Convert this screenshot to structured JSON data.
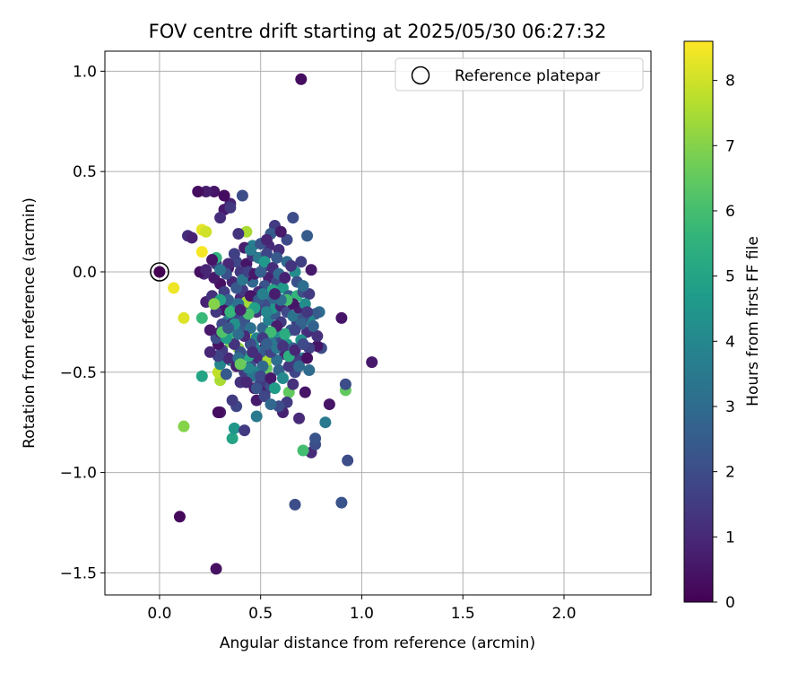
{
  "chart_data": {
    "type": "scatter",
    "title": "FOV centre drift starting at 2025/05/30 06:27:32",
    "xlabel": "Angular distance from reference (arcmin)",
    "ylabel": "Rotation from reference (arcmin)",
    "xlim": [
      -0.27,
      2.43
    ],
    "ylim": [
      -1.61,
      1.1
    ],
    "xticks": [
      0.0,
      0.5,
      1.0,
      1.5,
      2.0
    ],
    "xtick_labels": [
      "0.0",
      "0.5",
      "1.0",
      "1.5",
      "2.0"
    ],
    "yticks": [
      -1.5,
      -1.0,
      -0.5,
      0.0,
      0.5,
      1.0
    ],
    "ytick_labels": [
      "−1.5",
      "−1.0",
      "−0.5",
      "0.0",
      "0.5",
      "1.0"
    ],
    "grid": true,
    "legend": {
      "position": "top-right",
      "entries": [
        "Reference platepar"
      ]
    },
    "reference_point": {
      "x": 0.0,
      "y": 0.0,
      "label": "Reference platepar"
    },
    "colorbar": {
      "label": "Hours from first FF file",
      "colormap": "viridis",
      "range": [
        0,
        8.6
      ],
      "ticks": [
        0,
        1,
        2,
        3,
        4,
        5,
        6,
        7,
        8
      ],
      "tick_labels": [
        "0",
        "1",
        "2",
        "3",
        "4",
        "5",
        "6",
        "7",
        "8"
      ]
    },
    "points_format": [
      "x_arcmin",
      "y_arcmin",
      "hours"
    ],
    "points": [
      [
        0.7,
        0.96,
        0.3
      ],
      [
        1.05,
        -0.45,
        0.6
      ],
      [
        0.1,
        -1.22,
        0.2
      ],
      [
        0.28,
        -1.48,
        0.4
      ],
      [
        0.67,
        -1.16,
        2.0
      ],
      [
        0.9,
        -1.15,
        2.2
      ],
      [
        0.93,
        -0.94,
        2.0
      ],
      [
        0.75,
        -0.9,
        1.0
      ],
      [
        0.71,
        -0.89,
        6.0
      ],
      [
        0.12,
        -0.77,
        7.0
      ],
      [
        0.36,
        -0.83,
        5.0
      ],
      [
        0.37,
        -0.78,
        4.5
      ],
      [
        0.3,
        -0.7,
        0.6
      ],
      [
        0.29,
        -0.7,
        0.3
      ],
      [
        0.42,
        -0.79,
        1.5
      ],
      [
        0.48,
        -0.72,
        3.5
      ],
      [
        0.38,
        -0.67,
        1.8
      ],
      [
        0.36,
        -0.64,
        1.5
      ],
      [
        0.77,
        -0.86,
        2.0
      ],
      [
        0.77,
        -0.83,
        2.2
      ],
      [
        0.82,
        -0.75,
        3.5
      ],
      [
        0.69,
        -0.73,
        1.0
      ],
      [
        0.84,
        -0.66,
        0.5
      ],
      [
        0.61,
        -0.7,
        0.8
      ],
      [
        0.92,
        -0.59,
        6.5
      ],
      [
        0.92,
        -0.56,
        2.0
      ],
      [
        0.64,
        -0.6,
        6.5
      ],
      [
        0.72,
        -0.6,
        0.5
      ],
      [
        0.63,
        -0.65,
        1.5
      ],
      [
        0.59,
        -0.67,
        2.0
      ],
      [
        0.3,
        -0.54,
        7.5
      ],
      [
        0.29,
        -0.5,
        7.8
      ],
      [
        0.21,
        -0.52,
        5.0
      ],
      [
        0.3,
        -0.46,
        4.0
      ],
      [
        0.35,
        -0.44,
        3.0
      ],
      [
        0.37,
        -0.45,
        5.5
      ],
      [
        0.5,
        -0.55,
        1.5
      ],
      [
        0.53,
        -0.48,
        6.5
      ],
      [
        0.53,
        -0.44,
        7.5
      ],
      [
        0.47,
        -0.58,
        0.5
      ],
      [
        0.52,
        -0.6,
        0.8
      ],
      [
        0.55,
        -0.57,
        2.0
      ],
      [
        0.66,
        -0.56,
        1.2
      ],
      [
        0.67,
        -0.5,
        1.8
      ],
      [
        0.74,
        -0.49,
        3.0
      ],
      [
        0.71,
        -0.43,
        3.5
      ],
      [
        0.68,
        -0.44,
        1.5
      ],
      [
        0.8,
        -0.38,
        2.0
      ],
      [
        0.78,
        -0.37,
        0.5
      ],
      [
        0.78,
        -0.32,
        1.2
      ],
      [
        0.9,
        -0.23,
        0.5
      ],
      [
        0.79,
        -0.2,
        3.0
      ],
      [
        0.77,
        -0.21,
        2.5
      ],
      [
        0.74,
        -0.24,
        4.0
      ],
      [
        0.68,
        -0.25,
        1.5
      ],
      [
        0.65,
        -0.29,
        2.5
      ],
      [
        0.63,
        -0.36,
        4.5
      ],
      [
        0.59,
        -0.34,
        1.8
      ],
      [
        0.58,
        -0.3,
        4.2
      ],
      [
        0.55,
        -0.35,
        3.5
      ],
      [
        0.52,
        -0.38,
        0.5
      ],
      [
        0.5,
        -0.4,
        2.5
      ],
      [
        0.48,
        -0.43,
        1.0
      ],
      [
        0.45,
        -0.47,
        2.0
      ],
      [
        0.42,
        -0.5,
        1.5
      ],
      [
        0.38,
        -0.47,
        0.8
      ],
      [
        0.34,
        -0.43,
        1.0
      ],
      [
        0.31,
        -0.39,
        1.5
      ],
      [
        0.29,
        -0.36,
        0.5
      ],
      [
        0.28,
        -0.33,
        2.0
      ],
      [
        0.3,
        -0.3,
        0.8
      ],
      [
        0.35,
        -0.35,
        6.8
      ],
      [
        0.39,
        -0.38,
        7.2
      ],
      [
        0.36,
        -0.3,
        5.5
      ],
      [
        0.43,
        -0.32,
        7.6
      ],
      [
        0.4,
        -0.27,
        2.5
      ],
      [
        0.34,
        -0.24,
        3.5
      ],
      [
        0.38,
        -0.21,
        1.8
      ],
      [
        0.42,
        -0.24,
        2.2
      ],
      [
        0.45,
        -0.28,
        3.2
      ],
      [
        0.48,
        -0.33,
        4.0
      ],
      [
        0.51,
        -0.28,
        2.8
      ],
      [
        0.54,
        -0.24,
        3.8
      ],
      [
        0.57,
        -0.21,
        2.5
      ],
      [
        0.6,
        -0.25,
        1.5
      ],
      [
        0.56,
        -0.18,
        4.5
      ],
      [
        0.52,
        -0.16,
        2.0
      ],
      [
        0.48,
        -0.2,
        1.2
      ],
      [
        0.44,
        -0.16,
        1.6
      ],
      [
        0.4,
        -0.13,
        1.0
      ],
      [
        0.36,
        -0.16,
        4.8
      ],
      [
        0.32,
        -0.19,
        0.5
      ],
      [
        0.28,
        -0.2,
        1.4
      ],
      [
        0.25,
        -0.29,
        0.6
      ],
      [
        0.21,
        -0.23,
        5.8
      ],
      [
        0.23,
        -0.15,
        0.8
      ],
      [
        0.26,
        -0.12,
        1.2
      ],
      [
        0.3,
        -0.06,
        0.4
      ],
      [
        0.27,
        -0.03,
        0.6
      ],
      [
        0.22,
        -0.01,
        1.0
      ],
      [
        0.2,
        0.0,
        0.4
      ],
      [
        0.23,
        0.01,
        0.9
      ],
      [
        0.28,
        0.04,
        1.5
      ],
      [
        0.34,
        0.02,
        0.6
      ],
      [
        0.38,
        0.05,
        1.8
      ],
      [
        0.43,
        0.04,
        0.5
      ],
      [
        0.46,
        0.08,
        1.2
      ],
      [
        0.49,
        0.07,
        3.5
      ],
      [
        0.52,
        0.03,
        1.6
      ],
      [
        0.54,
        -0.03,
        0.8
      ],
      [
        0.52,
        -0.07,
        2.2
      ],
      [
        0.49,
        -0.1,
        1.0
      ],
      [
        0.46,
        -0.05,
        2.8
      ],
      [
        0.43,
        -0.02,
        0.4
      ],
      [
        0.4,
        0.0,
        1.4
      ],
      [
        0.36,
        -0.05,
        0.9
      ],
      [
        0.32,
        -0.1,
        1.6
      ],
      [
        0.34,
        -0.14,
        2.6
      ],
      [
        0.43,
        -0.15,
        7.4
      ],
      [
        0.58,
        -0.05,
        1.8
      ],
      [
        0.61,
        -0.08,
        4.6
      ],
      [
        0.64,
        -0.12,
        2.5
      ],
      [
        0.68,
        -0.12,
        5.6
      ],
      [
        0.71,
        -0.1,
        2.0
      ],
      [
        0.74,
        -0.11,
        1.5
      ],
      [
        0.63,
        0.05,
        3.0
      ],
      [
        0.67,
        0.0,
        4.2
      ],
      [
        0.7,
        0.05,
        1.6
      ],
      [
        0.75,
        0.01,
        0.6
      ],
      [
        0.73,
        0.18,
        2.5
      ],
      [
        0.66,
        0.27,
        2.0
      ],
      [
        0.57,
        0.23,
        1.5
      ],
      [
        0.55,
        0.19,
        2.5
      ],
      [
        0.54,
        0.13,
        1.0
      ],
      [
        0.53,
        0.09,
        1.8
      ],
      [
        0.46,
        0.13,
        3.8
      ],
      [
        0.43,
        0.2,
        7.5
      ],
      [
        0.39,
        0.19,
        1.3
      ],
      [
        0.41,
        0.38,
        2.0
      ],
      [
        0.35,
        0.34,
        0.8
      ],
      [
        0.32,
        0.31,
        0.6
      ],
      [
        0.3,
        0.27,
        1.1
      ],
      [
        0.27,
        0.4,
        0.5
      ],
      [
        0.23,
        0.4,
        0.7
      ],
      [
        0.19,
        0.4,
        0.3
      ],
      [
        0.21,
        0.21,
        8.3
      ],
      [
        0.23,
        0.2,
        8.0
      ],
      [
        0.14,
        0.18,
        1.1
      ],
      [
        0.16,
        0.17,
        0.8
      ],
      [
        0.21,
        0.1,
        8.5
      ],
      [
        0.28,
        0.07,
        5.5
      ],
      [
        0.34,
        0.04,
        1.0
      ],
      [
        0.07,
        -0.08,
        8.4
      ],
      [
        0.12,
        -0.23,
        8.2
      ],
      [
        0.3,
        -0.14,
        5.0
      ],
      [
        0.27,
        -0.16,
        7.0
      ],
      [
        0.31,
        -0.26,
        1.9
      ],
      [
        0.36,
        -0.26,
        0.7
      ],
      [
        0.39,
        -0.16,
        3.2
      ],
      [
        0.41,
        -0.09,
        1.5
      ],
      [
        0.45,
        -0.12,
        0.5
      ],
      [
        0.49,
        -0.14,
        2.4
      ],
      [
        0.53,
        -0.2,
        4.0
      ],
      [
        0.56,
        -0.13,
        2.8
      ],
      [
        0.6,
        -0.17,
        0.9
      ],
      [
        0.63,
        -0.2,
        1.9
      ],
      [
        0.66,
        -0.22,
        3.3
      ],
      [
        0.69,
        -0.18,
        0.7
      ],
      [
        0.71,
        -0.23,
        2.3
      ],
      [
        0.73,
        -0.3,
        1.1
      ],
      [
        0.7,
        -0.34,
        4.4
      ],
      [
        0.66,
        -0.38,
        2.6
      ],
      [
        0.62,
        -0.41,
        0.9
      ],
      [
        0.58,
        -0.44,
        3.1
      ],
      [
        0.55,
        -0.4,
        1.7
      ],
      [
        0.51,
        -0.47,
        2.9
      ],
      [
        0.47,
        -0.5,
        3.9
      ],
      [
        0.44,
        -0.42,
        5.2
      ],
      [
        0.4,
        -0.4,
        2.1
      ],
      [
        0.37,
        -0.36,
        1.3
      ],
      [
        0.33,
        -0.33,
        4.7
      ],
      [
        0.31,
        -0.3,
        6.2
      ],
      [
        0.29,
        -0.42,
        1.7
      ],
      [
        0.25,
        -0.4,
        0.9
      ],
      [
        0.33,
        -0.51,
        2.4
      ],
      [
        0.4,
        -0.55,
        1.2
      ],
      [
        0.46,
        -0.52,
        3.3
      ],
      [
        0.5,
        -0.52,
        1.9
      ],
      [
        0.55,
        -0.53,
        0.6
      ],
      [
        0.59,
        -0.49,
        2.7
      ],
      [
        0.61,
        -0.53,
        4.1
      ],
      [
        0.64,
        -0.47,
        1.4
      ],
      [
        0.69,
        -0.47,
        2.9
      ],
      [
        0.74,
        -0.38,
        1.7
      ],
      [
        0.76,
        -0.27,
        2.7
      ],
      [
        0.62,
        -0.31,
        5.3
      ],
      [
        0.58,
        -0.27,
        0.7
      ],
      [
        0.55,
        -0.3,
        5.9
      ],
      [
        0.51,
        -0.33,
        1.5
      ],
      [
        0.47,
        -0.38,
        3.6
      ],
      [
        0.45,
        -0.36,
        2.0
      ],
      [
        0.42,
        -0.32,
        1.0
      ],
      [
        0.39,
        -0.31,
        3.0
      ],
      [
        0.37,
        -0.26,
        4.3
      ],
      [
        0.34,
        -0.28,
        2.3
      ],
      [
        0.35,
        -0.2,
        5.7
      ],
      [
        0.38,
        -0.08,
        2.4
      ],
      [
        0.41,
        -0.04,
        3.4
      ],
      [
        0.44,
        0.0,
        1.7
      ],
      [
        0.47,
        -0.01,
        0.6
      ],
      [
        0.5,
        0.0,
        2.6
      ],
      [
        0.52,
        0.05,
        4.6
      ],
      [
        0.56,
        0.02,
        1.1
      ],
      [
        0.59,
        -0.01,
        2.9
      ],
      [
        0.62,
        -0.03,
        0.8
      ],
      [
        0.65,
        0.03,
        1.3
      ],
      [
        0.68,
        -0.05,
        2.1
      ],
      [
        0.71,
        -0.07,
        3.1
      ],
      [
        0.72,
        -0.16,
        4.2
      ],
      [
        0.56,
        -0.09,
        5.1
      ],
      [
        0.51,
        -0.11,
        3.7
      ],
      [
        0.47,
        -0.18,
        4.9
      ],
      [
        0.44,
        -0.21,
        6.1
      ],
      [
        0.4,
        -0.19,
        0.8
      ],
      [
        0.33,
        -0.01,
        2.1
      ],
      [
        0.3,
        0.01,
        3.3
      ],
      [
        0.26,
        0.06,
        0.5
      ],
      [
        0.37,
        0.09,
        1.6
      ],
      [
        0.42,
        0.12,
        0.7
      ],
      [
        0.45,
        0.11,
        3.6
      ],
      [
        0.5,
        0.14,
        2.2
      ],
      [
        0.59,
        0.11,
        1.1
      ],
      [
        0.63,
        0.16,
        1.9
      ],
      [
        0.6,
        0.2,
        0.6
      ],
      [
        0.58,
        0.07,
        2.4
      ],
      [
        0.53,
        0.16,
        0.9
      ],
      [
        0.32,
        0.38,
        0.3
      ],
      [
        0.35,
        0.32,
        1.4
      ],
      [
        0.66,
        -0.16,
        0.5
      ],
      [
        0.63,
        -0.14,
        6.0
      ],
      [
        0.48,
        -0.64,
        0.6
      ],
      [
        0.52,
        -0.62,
        1.8
      ],
      [
        0.55,
        -0.66,
        2.9
      ],
      [
        0.57,
        -0.58,
        4.7
      ],
      [
        0.48,
        -0.58,
        2.2
      ],
      [
        0.44,
        -0.48,
        4.0
      ],
      [
        0.43,
        -0.55,
        0.9
      ],
      [
        0.39,
        -0.43,
        3.1
      ],
      [
        0.4,
        -0.46,
        6.6
      ],
      [
        0.46,
        -0.4,
        1.1
      ],
      [
        0.53,
        -0.36,
        2.6
      ],
      [
        0.58,
        -0.38,
        3.4
      ],
      [
        0.61,
        -0.37,
        1.3
      ],
      [
        0.64,
        -0.42,
        5.4
      ],
      [
        0.67,
        -0.39,
        0.9
      ],
      [
        0.71,
        -0.36,
        1.9
      ],
      [
        0.73,
        -0.43,
        0.4
      ],
      [
        0.73,
        -0.2,
        1.4
      ],
      [
        0.7,
        -0.26,
        2.7
      ],
      [
        0.67,
        -0.29,
        1.8
      ],
      [
        0.6,
        -0.14,
        3.1
      ],
      [
        0.57,
        -0.11,
        0.7
      ]
    ]
  }
}
